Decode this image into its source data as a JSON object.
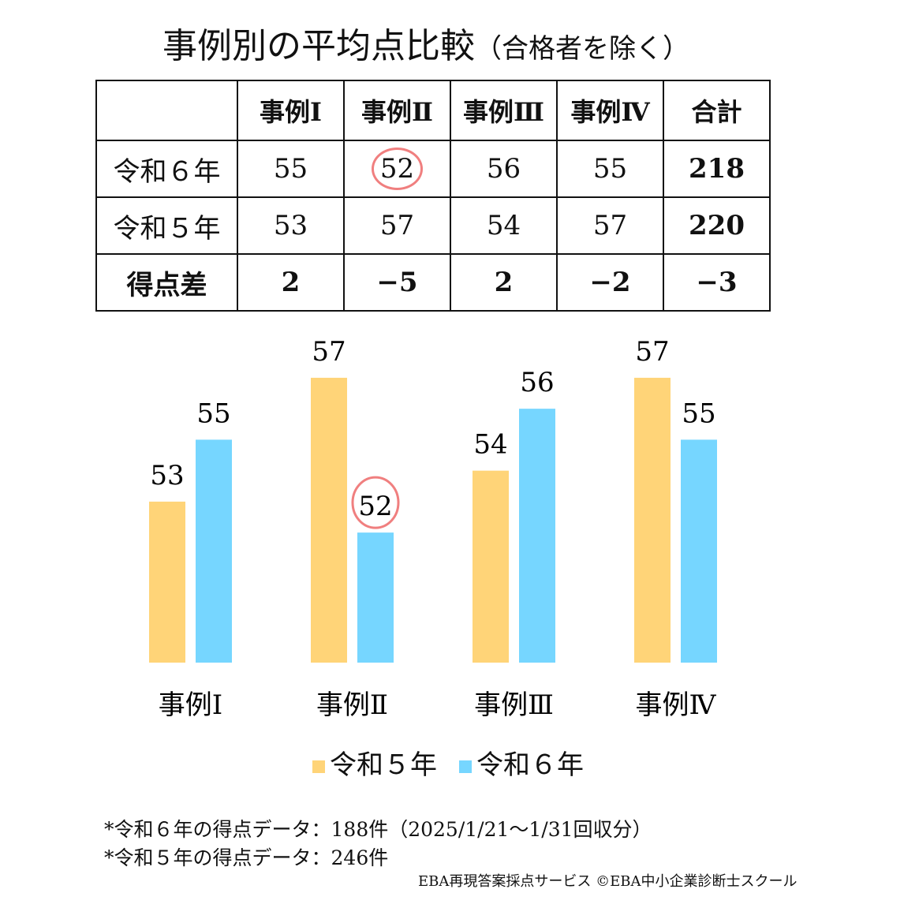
{
  "title": "事例別の平均点比較",
  "subtitle": "（合格者を除く）",
  "table": {
    "headers": [
      "",
      "事例Ⅰ",
      "事例Ⅱ",
      "事例Ⅲ",
      "事例Ⅳ",
      "合計"
    ],
    "rows": [
      {
        "label": "令和６年",
        "cells": [
          "55",
          "52",
          "56",
          "55",
          "218"
        ]
      },
      {
        "label": "令和５年",
        "cells": [
          "53",
          "57",
          "54",
          "57",
          "220"
        ]
      },
      {
        "label": "得点差",
        "cells": [
          "2",
          "−5",
          "2",
          "−2",
          "−3"
        ]
      }
    ],
    "highlighted_cell": "令和６年 / 事例Ⅱ"
  },
  "chart_data": {
    "type": "bar",
    "categories": [
      "事例Ⅰ",
      "事例Ⅱ",
      "事例Ⅲ",
      "事例Ⅳ"
    ],
    "series": [
      {
        "name": "令和５年",
        "values": [
          53,
          57,
          54,
          57
        ],
        "color": "#FFD478"
      },
      {
        "name": "令和６年",
        "values": [
          55,
          52,
          56,
          55
        ],
        "color": "#76D6FF"
      }
    ],
    "ylim": [
      47.8,
      58
    ],
    "grid": false,
    "data_labels": true,
    "legend": "bottom",
    "highlight": {
      "series": "令和６年",
      "category": "事例Ⅱ",
      "color": "#F07F7F"
    }
  },
  "notes": [
    "*令和６年の得点データ：188件（2025/1/21〜1/31回収分）",
    "*令和５年の得点データ：246件"
  ],
  "credit": "EBA再現答案採点サービス ©EBA中小企業診断士スクール"
}
